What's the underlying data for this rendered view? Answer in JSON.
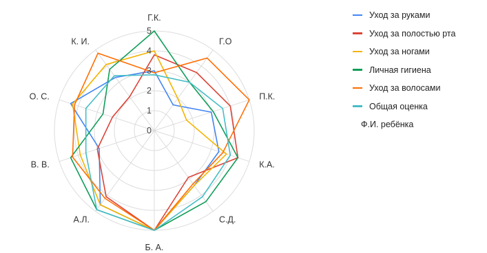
{
  "chart_data": {
    "type": "radar",
    "categories": [
      "Г.К.",
      "Г.О",
      "П.К.",
      "К.А.",
      "С.Д.",
      "Б. А.",
      "А.Л.",
      "В. В.",
      "О. С.",
      "К. И."
    ],
    "rlim": [
      0,
      5
    ],
    "ticks": [
      "0",
      "1",
      "2",
      "3",
      "4",
      "5"
    ],
    "grid": true,
    "legend_position": "right",
    "series": [
      {
        "name": "Уход за руками",
        "color": "#4285f4",
        "values": [
          3.0,
          1.6,
          3.0,
          3.4,
          3.4,
          5.0,
          4.6,
          2.9,
          4.4,
          3.3
        ]
      },
      {
        "name": "Уход за полостью рта",
        "color": "#db4437",
        "values": [
          3.8,
          3.6,
          4.0,
          4.4,
          2.9,
          5.0,
          4.1,
          3.0,
          2.2,
          2.1
        ]
      },
      {
        "name": "Уход за ногами",
        "color": "#f4b400",
        "values": [
          4.0,
          2.0,
          1.7,
          3.8,
          3.4,
          5.0,
          4.6,
          3.9,
          4.3,
          4.1
        ]
      },
      {
        "name": "Личная гигиена",
        "color": "#0f9d58",
        "values": [
          5.0,
          3.0,
          3.1,
          4.4,
          4.4,
          5.0,
          4.9,
          4.4,
          2.7,
          3.8
        ]
      },
      {
        "name": "Уход за волосами",
        "color": "#ff6d01",
        "values": [
          2.9,
          4.5,
          5.0,
          3.6,
          3.3,
          5.0,
          4.2,
          4.3,
          4.2,
          4.8
        ]
      },
      {
        "name": "Общая оценка",
        "color": "#46bdc6",
        "values": [
          2.8,
          3.0,
          3.6,
          4.0,
          4.1,
          5.0,
          4.9,
          3.6,
          3.6,
          3.4
        ]
      }
    ],
    "legend_note": "Ф.И. ребёнка"
  }
}
